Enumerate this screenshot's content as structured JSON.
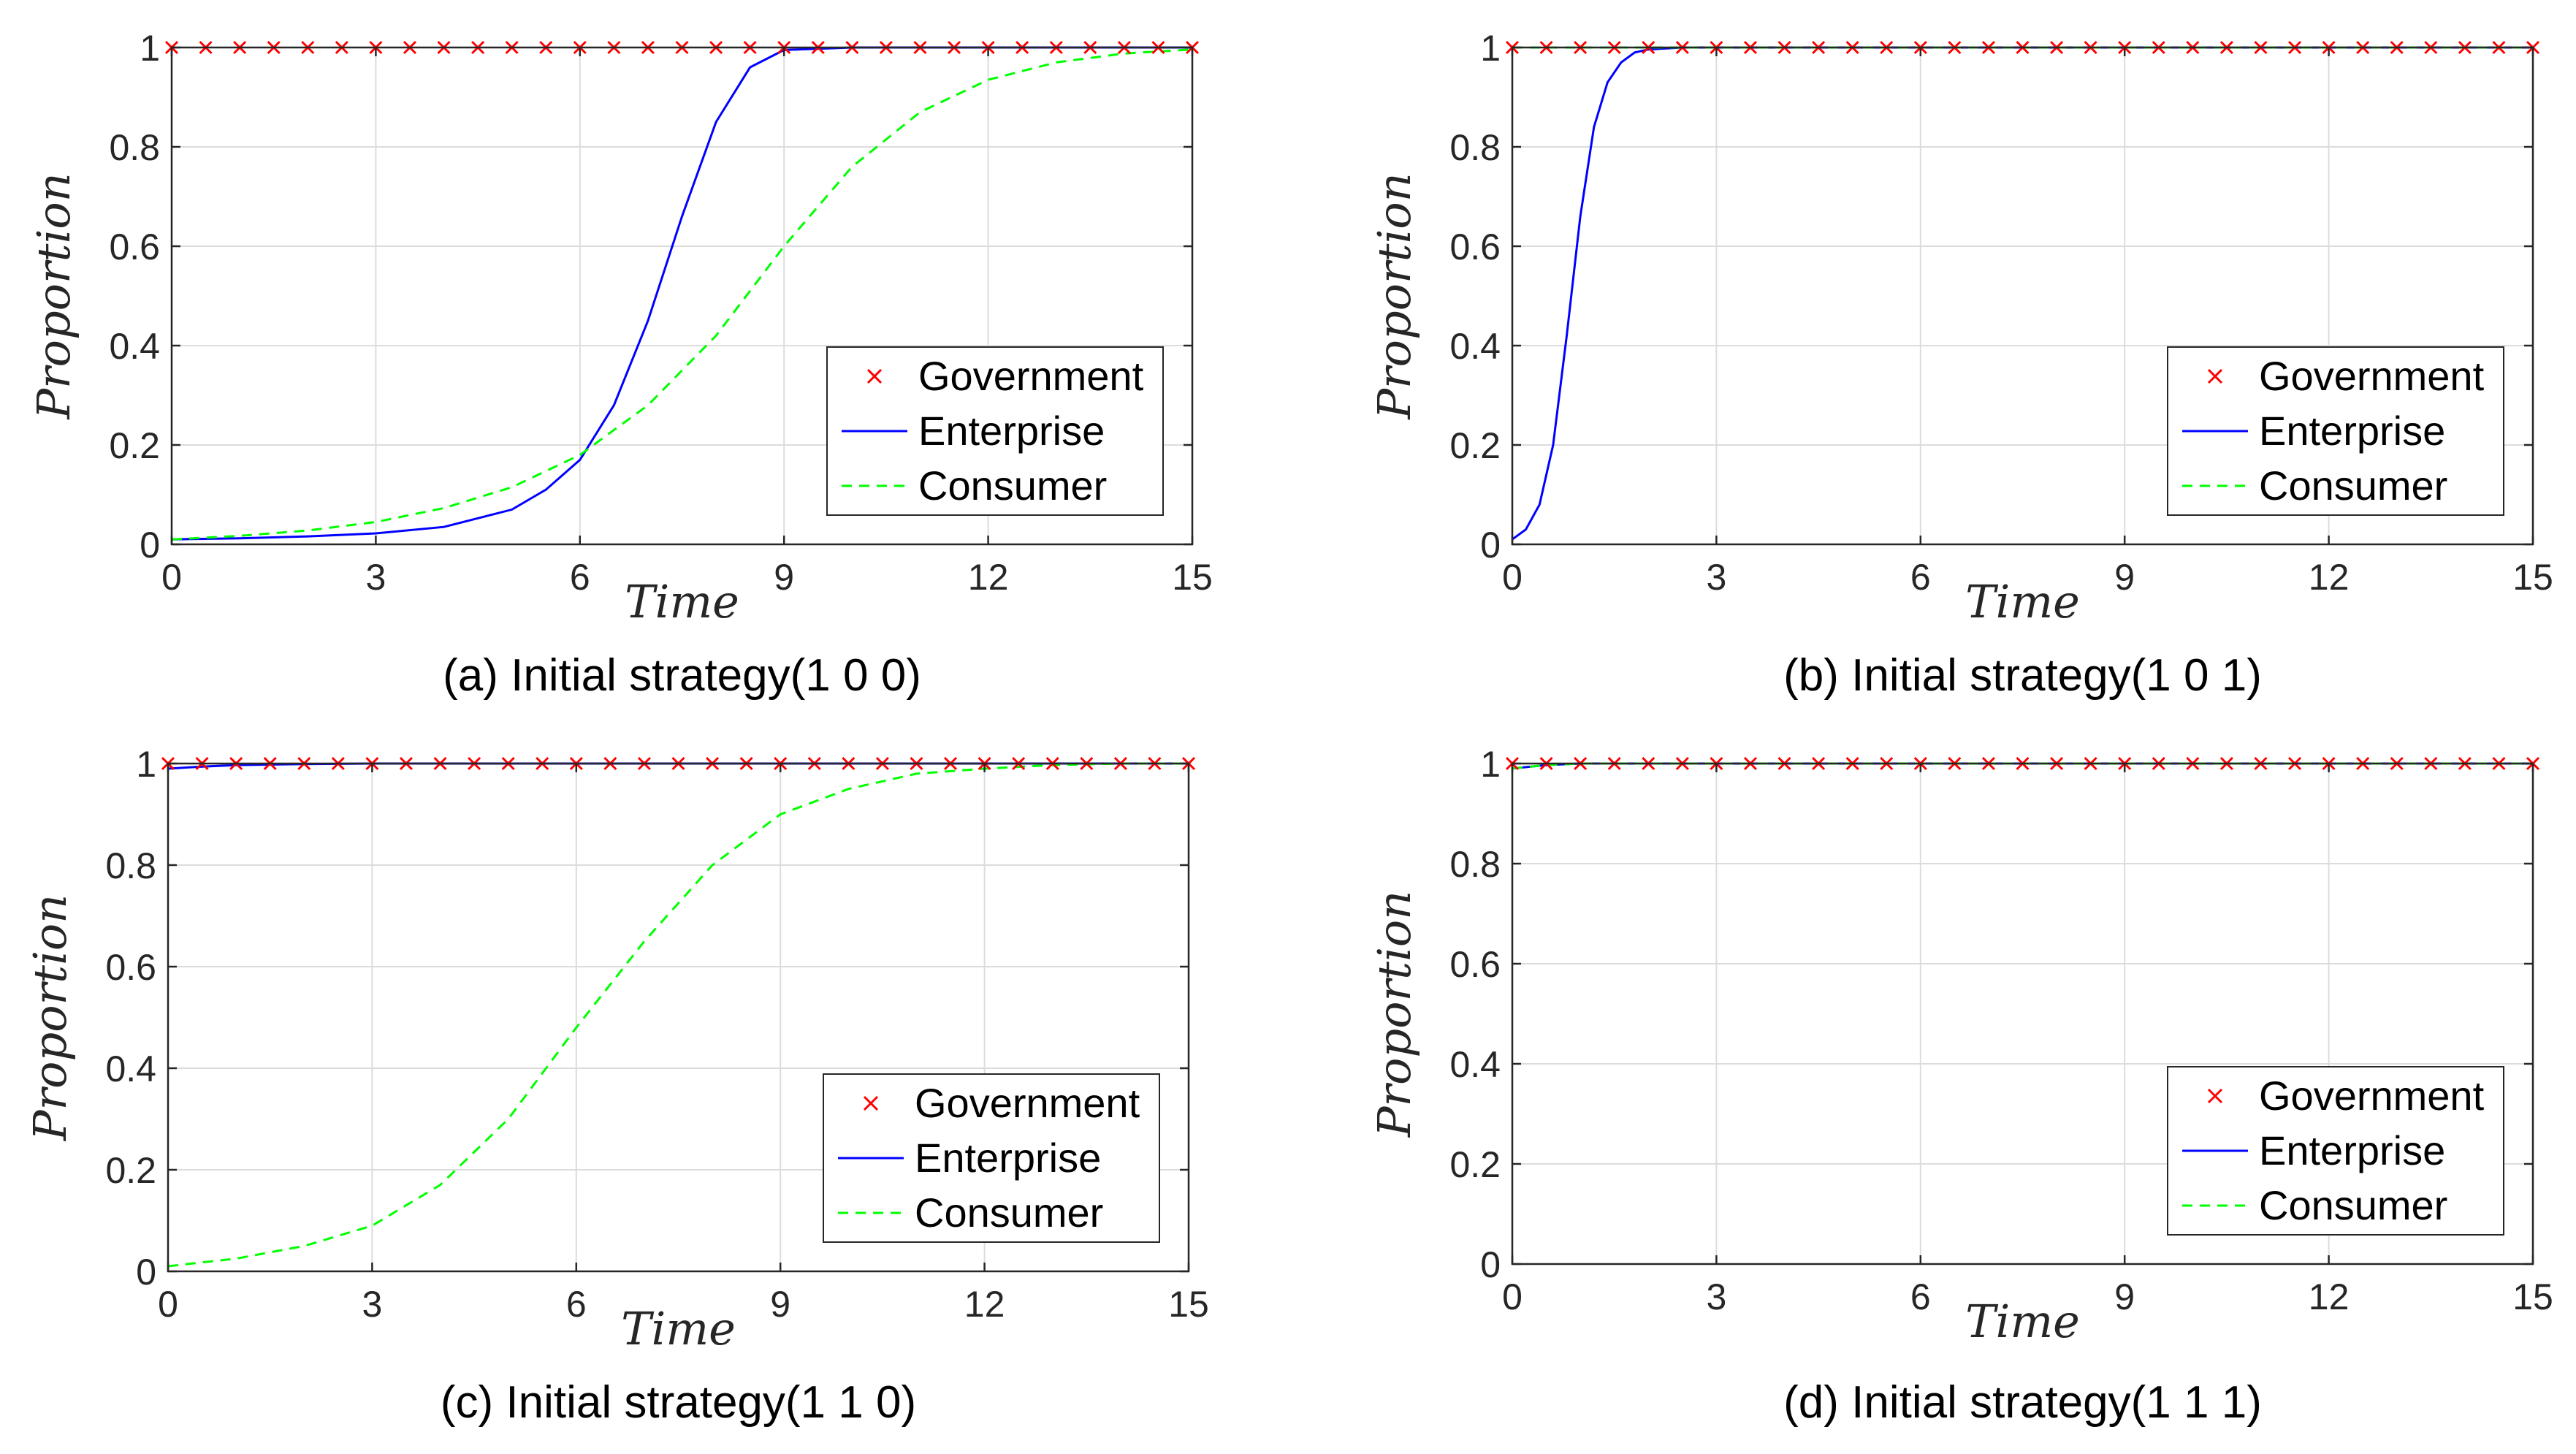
{
  "figure": {
    "series_styles": {
      "Government": {
        "color": "#ff0000",
        "marker": "x"
      },
      "Enterprise": {
        "color": "#0000ff",
        "line": "solid"
      },
      "Consumer": {
        "color": "#00ff00",
        "line": "dashed"
      }
    }
  },
  "chart_data": [
    {
      "type": "line",
      "caption": "(a) Initial strategy(1 0 0)",
      "xlabel": "Time",
      "ylabel": "Proportion",
      "xlim": [
        0,
        15
      ],
      "ylim": [
        0,
        1
      ],
      "xticks": [
        0,
        3,
        6,
        9,
        12,
        15
      ],
      "xtick_labels": [
        "0",
        "3",
        "6",
        "9",
        "12",
        "15"
      ],
      "yticks": [
        0,
        0.2,
        0.4,
        0.6,
        0.8,
        1
      ],
      "ytick_labels": [
        "0",
        "0.2",
        "0.4",
        "0.6",
        "0.8",
        "1"
      ],
      "grid": true,
      "legend": [
        "Government",
        "Enterprise",
        "Consumer"
      ],
      "legend_position": "bottom-right",
      "series": [
        {
          "name": "Government",
          "x": [
            0,
            0.5,
            1,
            1.5,
            2,
            2.5,
            3,
            3.5,
            4,
            4.5,
            5,
            5.5,
            6,
            6.5,
            7,
            7.5,
            8,
            8.5,
            9,
            9.5,
            10,
            10.5,
            11,
            11.5,
            12,
            12.5,
            13,
            13.5,
            14,
            14.5,
            15
          ],
          "y": [
            1,
            1,
            1,
            1,
            1,
            1,
            1,
            1,
            1,
            1,
            1,
            1,
            1,
            1,
            1,
            1,
            1,
            1,
            1,
            1,
            1,
            1,
            1,
            1,
            1,
            1,
            1,
            1,
            1,
            1,
            1
          ]
        },
        {
          "name": "Enterprise",
          "x": [
            0,
            1,
            2,
            3,
            4,
            5,
            5.5,
            6,
            6.5,
            7,
            7.5,
            8,
            8.5,
            9,
            10,
            11,
            12,
            13,
            14,
            15
          ],
          "y": [
            0.01,
            0.012,
            0.016,
            0.022,
            0.035,
            0.07,
            0.11,
            0.17,
            0.28,
            0.45,
            0.66,
            0.85,
            0.96,
            0.995,
            1,
            1,
            1,
            1,
            1,
            1
          ]
        },
        {
          "name": "Consumer",
          "x": [
            0,
            1,
            2,
            3,
            4,
            5,
            6,
            7,
            8,
            9,
            10,
            11,
            12,
            13,
            14,
            15
          ],
          "y": [
            0.01,
            0.017,
            0.028,
            0.045,
            0.073,
            0.115,
            0.18,
            0.28,
            0.42,
            0.6,
            0.76,
            0.87,
            0.935,
            0.97,
            0.988,
            0.996
          ]
        }
      ]
    },
    {
      "type": "line",
      "caption": "(b) Initial strategy(1 0 1)",
      "xlabel": "Time",
      "ylabel": "Proportion",
      "xlim": [
        0,
        15
      ],
      "ylim": [
        0,
        1
      ],
      "xticks": [
        0,
        3,
        6,
        9,
        12,
        15
      ],
      "xtick_labels": [
        "0",
        "3",
        "6",
        "9",
        "12",
        "15"
      ],
      "yticks": [
        0,
        0.2,
        0.4,
        0.6,
        0.8,
        1
      ],
      "ytick_labels": [
        "0",
        "0.2",
        "0.4",
        "0.6",
        "0.8",
        "1"
      ],
      "grid": true,
      "legend": [
        "Government",
        "Enterprise",
        "Consumer"
      ],
      "legend_position": "bottom-right",
      "series": [
        {
          "name": "Government",
          "x": [
            0,
            0.5,
            1,
            1.5,
            2,
            2.5,
            3,
            3.5,
            4,
            4.5,
            5,
            5.5,
            6,
            6.5,
            7,
            7.5,
            8,
            8.5,
            9,
            9.5,
            10,
            10.5,
            11,
            11.5,
            12,
            12.5,
            13,
            13.5,
            14,
            14.5,
            15
          ],
          "y": [
            1,
            1,
            1,
            1,
            1,
            1,
            1,
            1,
            1,
            1,
            1,
            1,
            1,
            1,
            1,
            1,
            1,
            1,
            1,
            1,
            1,
            1,
            1,
            1,
            1,
            1,
            1,
            1,
            1,
            1,
            1
          ]
        },
        {
          "name": "Enterprise",
          "x": [
            0,
            0.2,
            0.4,
            0.6,
            0.8,
            1.0,
            1.2,
            1.4,
            1.6,
            1.8,
            2.0,
            2.5,
            3,
            5,
            10,
            15
          ],
          "y": [
            0.01,
            0.03,
            0.08,
            0.2,
            0.42,
            0.66,
            0.84,
            0.93,
            0.97,
            0.99,
            0.996,
            1,
            1,
            1,
            1,
            1
          ]
        },
        {
          "name": "Consumer",
          "x": [
            0,
            1,
            2,
            3,
            4,
            5,
            6,
            7,
            8,
            9,
            10,
            11,
            12,
            13,
            14,
            15
          ],
          "y": [
            1,
            1,
            1,
            1,
            1,
            1,
            1,
            1,
            1,
            1,
            1,
            1,
            1,
            1,
            1,
            1
          ]
        }
      ]
    },
    {
      "type": "line",
      "caption": "(c) Initial strategy(1 1 0)",
      "xlabel": "Time",
      "ylabel": "Proportion",
      "xlim": [
        0,
        15
      ],
      "ylim": [
        0,
        1
      ],
      "xticks": [
        0,
        3,
        6,
        9,
        12,
        15
      ],
      "xtick_labels": [
        "0",
        "3",
        "6",
        "9",
        "12",
        "15"
      ],
      "yticks": [
        0,
        0.2,
        0.4,
        0.6,
        0.8,
        1
      ],
      "ytick_labels": [
        "0",
        "0.2",
        "0.4",
        "0.6",
        "0.8",
        "1"
      ],
      "grid": true,
      "legend": [
        "Government",
        "Enterprise",
        "Consumer"
      ],
      "legend_position": "bottom-right",
      "series": [
        {
          "name": "Government",
          "x": [
            0,
            0.5,
            1,
            1.5,
            2,
            2.5,
            3,
            3.5,
            4,
            4.5,
            5,
            5.5,
            6,
            6.5,
            7,
            7.5,
            8,
            8.5,
            9,
            9.5,
            10,
            10.5,
            11,
            11.5,
            12,
            12.5,
            13,
            13.5,
            14,
            14.5,
            15
          ],
          "y": [
            1,
            1,
            1,
            1,
            1,
            1,
            1,
            1,
            1,
            1,
            1,
            1,
            1,
            1,
            1,
            1,
            1,
            1,
            1,
            1,
            1,
            1,
            1,
            1,
            1,
            1,
            1,
            1,
            1,
            1,
            1
          ]
        },
        {
          "name": "Enterprise",
          "x": [
            0,
            0.5,
            1,
            2,
            3,
            15
          ],
          "y": [
            0.99,
            0.994,
            0.997,
            0.999,
            1,
            1
          ]
        },
        {
          "name": "Consumer",
          "x": [
            0,
            1,
            2,
            3,
            4,
            5,
            6,
            7,
            8,
            9,
            10,
            11,
            12,
            13,
            14,
            15
          ],
          "y": [
            0.01,
            0.025,
            0.05,
            0.09,
            0.17,
            0.3,
            0.48,
            0.65,
            0.8,
            0.9,
            0.95,
            0.98,
            0.99,
            0.997,
            1,
            1
          ]
        }
      ]
    },
    {
      "type": "line",
      "caption": "(d) Initial strategy(1 1 1)",
      "xlabel": "Time",
      "ylabel": "Proportion",
      "xlim": [
        0,
        15
      ],
      "ylim": [
        0,
        1
      ],
      "xticks": [
        0,
        3,
        6,
        9,
        12,
        15
      ],
      "xtick_labels": [
        "0",
        "3",
        "6",
        "9",
        "12",
        "15"
      ],
      "yticks": [
        0,
        0.2,
        0.4,
        0.6,
        0.8,
        1
      ],
      "ytick_labels": [
        "0",
        "0.2",
        "0.4",
        "0.6",
        "0.8",
        "1"
      ],
      "grid": true,
      "legend": [
        "Government",
        "Enterprise",
        "Consumer"
      ],
      "legend_position": "bottom-right",
      "series": [
        {
          "name": "Government",
          "x": [
            0,
            0.5,
            1,
            1.5,
            2,
            2.5,
            3,
            3.5,
            4,
            4.5,
            5,
            5.5,
            6,
            6.5,
            7,
            7.5,
            8,
            8.5,
            9,
            9.5,
            10,
            10.5,
            11,
            11.5,
            12,
            12.5,
            13,
            13.5,
            14,
            14.5,
            15
          ],
          "y": [
            1,
            1,
            1,
            1,
            1,
            1,
            1,
            1,
            1,
            1,
            1,
            1,
            1,
            1,
            1,
            1,
            1,
            1,
            1,
            1,
            1,
            1,
            1,
            1,
            1,
            1,
            1,
            1,
            1,
            1,
            1
          ]
        },
        {
          "name": "Enterprise",
          "x": [
            0,
            0.5,
            1,
            15
          ],
          "y": [
            0.99,
            0.997,
            1,
            1
          ]
        },
        {
          "name": "Consumer",
          "x": [
            0,
            0.5,
            1,
            15
          ],
          "y": [
            0.99,
            0.997,
            1,
            1
          ]
        }
      ]
    }
  ]
}
